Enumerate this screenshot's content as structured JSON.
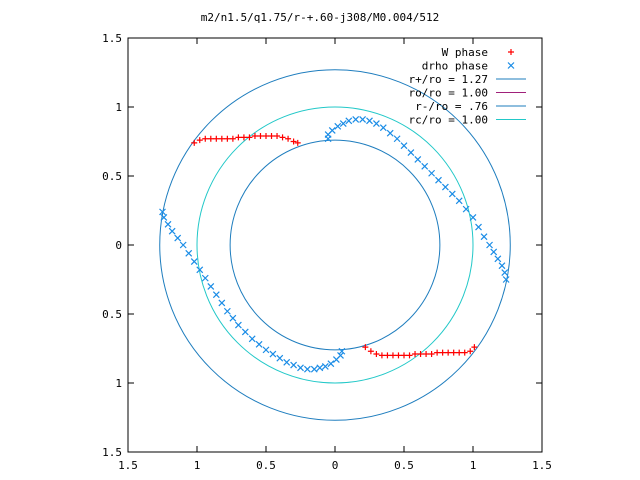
{
  "chart_data": {
    "type": "scatter",
    "title": "m2/n1.5/q1.75/r-+.60-j308/M0.004/512",
    "xlabel": "",
    "ylabel": "",
    "xlim": [
      -1.5,
      1.5
    ],
    "ylim": [
      -1.5,
      1.5
    ],
    "x_ticks": [
      -1.5,
      -1,
      -0.5,
      0,
      0.5,
      1,
      1.5
    ],
    "x_tick_labels": [
      "1.5",
      "1",
      "0.5",
      "0",
      "0.5",
      "1",
      "1.5"
    ],
    "y_ticks": [
      1.5,
      1,
      0.5,
      0,
      -0.5,
      -1,
      -1.5
    ],
    "y_tick_labels": [
      "1.5",
      "1",
      "0.5",
      "0",
      "0.5",
      "1",
      "1.5"
    ],
    "grid": false,
    "legend_position": "top-right",
    "circles": [
      {
        "label": "r+/ro = 1.27",
        "radius": 1.27,
        "color": "#1e7dbe"
      },
      {
        "label": "ro/ro = 1.00",
        "radius": 1.0,
        "color": "#a0207a",
        "visible": false
      },
      {
        "label": "r-/ro = .76",
        "radius": 0.76,
        "color": "#1e7dbe"
      },
      {
        "label": "rc/ro = 1.00",
        "radius": 1.0,
        "color": "#22c8c8"
      }
    ],
    "series": [
      {
        "name": "W phase",
        "marker": "plus",
        "color": "#ff0000",
        "points": [
          [
            -1.02,
            0.74
          ],
          [
            -0.98,
            0.76
          ],
          [
            -0.94,
            0.77
          ],
          [
            -0.9,
            0.77
          ],
          [
            -0.86,
            0.77
          ],
          [
            -0.82,
            0.77
          ],
          [
            -0.78,
            0.77
          ],
          [
            -0.74,
            0.77
          ],
          [
            -0.7,
            0.78
          ],
          [
            -0.66,
            0.78
          ],
          [
            -0.62,
            0.78
          ],
          [
            -0.58,
            0.79
          ],
          [
            -0.54,
            0.79
          ],
          [
            -0.5,
            0.79
          ],
          [
            -0.46,
            0.79
          ],
          [
            -0.42,
            0.79
          ],
          [
            -0.38,
            0.78
          ],
          [
            -0.34,
            0.77
          ],
          [
            -0.3,
            0.75
          ],
          [
            -0.27,
            0.74
          ],
          [
            0.22,
            -0.74
          ],
          [
            0.26,
            -0.77
          ],
          [
            0.3,
            -0.79
          ],
          [
            0.34,
            -0.8
          ],
          [
            0.38,
            -0.8
          ],
          [
            0.42,
            -0.8
          ],
          [
            0.46,
            -0.8
          ],
          [
            0.5,
            -0.8
          ],
          [
            0.54,
            -0.8
          ],
          [
            0.58,
            -0.79
          ],
          [
            0.62,
            -0.79
          ],
          [
            0.66,
            -0.79
          ],
          [
            0.7,
            -0.79
          ],
          [
            0.74,
            -0.78
          ],
          [
            0.78,
            -0.78
          ],
          [
            0.82,
            -0.78
          ],
          [
            0.86,
            -0.78
          ],
          [
            0.9,
            -0.78
          ],
          [
            0.94,
            -0.78
          ],
          [
            0.98,
            -0.77
          ],
          [
            1.01,
            -0.74
          ]
        ]
      },
      {
        "name": "drho phase",
        "marker": "cross",
        "color": "#1a8ce6",
        "points": [
          [
            -0.05,
            0.77
          ],
          [
            -0.05,
            0.8
          ],
          [
            -0.02,
            0.83
          ],
          [
            0.02,
            0.86
          ],
          [
            0.06,
            0.88
          ],
          [
            0.1,
            0.9
          ],
          [
            0.15,
            0.91
          ],
          [
            0.2,
            0.91
          ],
          [
            0.25,
            0.9
          ],
          [
            0.3,
            0.88
          ],
          [
            0.35,
            0.85
          ],
          [
            0.4,
            0.81
          ],
          [
            0.45,
            0.77
          ],
          [
            0.5,
            0.72
          ],
          [
            0.55,
            0.67
          ],
          [
            0.6,
            0.62
          ],
          [
            0.65,
            0.57
          ],
          [
            0.7,
            0.52
          ],
          [
            0.75,
            0.47
          ],
          [
            0.8,
            0.42
          ],
          [
            0.85,
            0.37
          ],
          [
            0.9,
            0.32
          ],
          [
            0.95,
            0.26
          ],
          [
            1.0,
            0.2
          ],
          [
            1.04,
            0.13
          ],
          [
            1.08,
            0.06
          ],
          [
            1.12,
            0.0
          ],
          [
            1.15,
            -0.05
          ],
          [
            1.18,
            -0.1
          ],
          [
            1.21,
            -0.15
          ],
          [
            1.23,
            -0.2
          ],
          [
            1.24,
            -0.25
          ],
          [
            0.05,
            -0.77
          ],
          [
            0.04,
            -0.8
          ],
          [
            0.01,
            -0.83
          ],
          [
            -0.03,
            -0.86
          ],
          [
            -0.07,
            -0.88
          ],
          [
            -0.11,
            -0.89
          ],
          [
            -0.15,
            -0.9
          ],
          [
            -0.2,
            -0.9
          ],
          [
            -0.25,
            -0.89
          ],
          [
            -0.3,
            -0.87
          ],
          [
            -0.35,
            -0.85
          ],
          [
            -0.4,
            -0.82
          ],
          [
            -0.45,
            -0.79
          ],
          [
            -0.5,
            -0.76
          ],
          [
            -0.55,
            -0.72
          ],
          [
            -0.6,
            -0.68
          ],
          [
            -0.65,
            -0.63
          ],
          [
            -0.7,
            -0.58
          ],
          [
            -0.74,
            -0.53
          ],
          [
            -0.78,
            -0.48
          ],
          [
            -0.82,
            -0.42
          ],
          [
            -0.86,
            -0.36
          ],
          [
            -0.9,
            -0.3
          ],
          [
            -0.94,
            -0.24
          ],
          [
            -0.98,
            -0.18
          ],
          [
            -1.02,
            -0.12
          ],
          [
            -1.06,
            -0.06
          ],
          [
            -1.1,
            0.0
          ],
          [
            -1.14,
            0.05
          ],
          [
            -1.18,
            0.1
          ],
          [
            -1.21,
            0.15
          ],
          [
            -1.24,
            0.2
          ],
          [
            -1.25,
            0.24
          ]
        ]
      }
    ]
  }
}
